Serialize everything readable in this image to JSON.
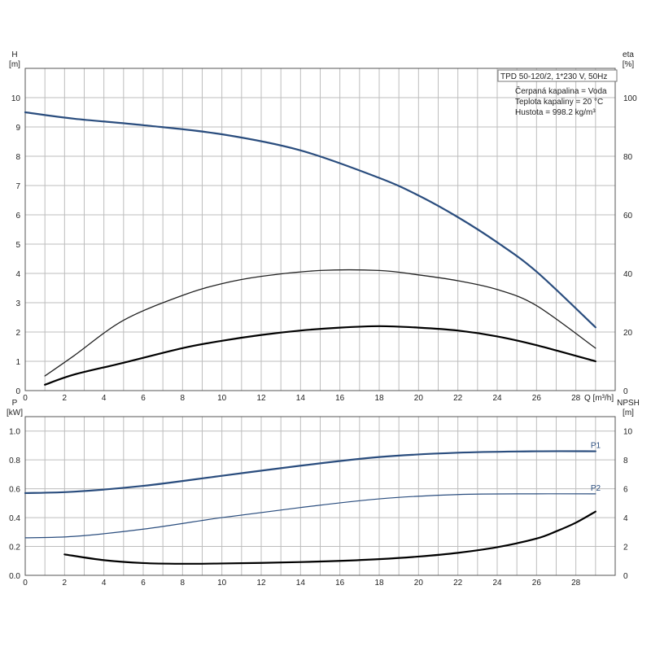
{
  "info_box": {
    "title": "TPD 50-120/2, 1*230 V, 50Hz",
    "lines": [
      "Čerpaná kapalina = Voda",
      "Teplota kapaliny = 20 °C",
      "Hustota = 998.2 kg/m³"
    ]
  },
  "chart_data": [
    {
      "type": "line",
      "panel": "top",
      "xlabel": "Q [m³/h]",
      "x_ticks": [
        0,
        2,
        4,
        6,
        8,
        10,
        12,
        14,
        16,
        18,
        20,
        22,
        24,
        26,
        28
      ],
      "xlim": [
        0,
        30
      ],
      "y_left": {
        "label_top": "H",
        "label_unit": "[m]",
        "lim": [
          0,
          11
        ],
        "ticks": [
          0,
          1,
          2,
          3,
          4,
          5,
          6,
          7,
          8,
          9,
          10
        ]
      },
      "y_right": {
        "label_top": "eta",
        "label_unit": "[%]",
        "lim": [
          0,
          110
        ],
        "ticks": [
          0,
          20,
          40,
          60,
          80,
          100
        ]
      },
      "grid": true,
      "series": [
        {
          "axis": "left",
          "color": "#2a4d7e",
          "width": 2.2,
          "x": [
            0,
            2.5,
            6,
            10,
            14,
            18,
            20,
            22,
            24,
            26,
            29
          ],
          "y": [
            9.5,
            9.28,
            9.06,
            8.75,
            8.2,
            7.26,
            6.66,
            5.92,
            5.06,
            4.06,
            2.16
          ]
        },
        {
          "axis": "right",
          "color": "#222222",
          "width": 1.3,
          "x": [
            1,
            2.5,
            5,
            8,
            10,
            12,
            15,
            18,
            20,
            22,
            24,
            26,
            29
          ],
          "y": [
            5,
            12,
            24,
            32.5,
            36.5,
            39,
            41,
            41,
            39.5,
            37.5,
            34.5,
            29,
            14.5
          ]
        },
        {
          "axis": "right",
          "color": "#000000",
          "width": 2.2,
          "x": [
            1,
            2.5,
            5,
            8,
            10,
            12,
            14,
            16,
            18,
            20,
            22,
            24,
            26,
            29
          ],
          "y": [
            2,
            5.5,
            9.5,
            14.5,
            17,
            19,
            20.5,
            21.5,
            22,
            21.5,
            20.5,
            18.5,
            15.5,
            10
          ]
        }
      ]
    },
    {
      "type": "line",
      "panel": "bottom",
      "x_ticks": [
        0,
        2,
        4,
        6,
        8,
        10,
        12,
        14,
        16,
        18,
        20,
        22,
        24,
        26,
        28
      ],
      "xlim": [
        0,
        30
      ],
      "y_left": {
        "label_top": "P",
        "label_unit": "[kW]",
        "lim": [
          0,
          1.1
        ],
        "ticks": [
          "0.0",
          "0.2",
          "0.4",
          "0.6",
          "0.8",
          "1.0"
        ]
      },
      "y_right": {
        "label_top": "NPSH",
        "label_unit": "[m]",
        "lim": [
          0,
          11
        ],
        "ticks": [
          0,
          2,
          4,
          6,
          8,
          10
        ]
      },
      "grid": true,
      "series": [
        {
          "name": "P1",
          "axis": "left",
          "color": "#2a4d7e",
          "width": 2.2,
          "x": [
            0,
            2.5,
            6,
            10,
            14,
            18,
            22,
            26,
            29
          ],
          "y": [
            0.57,
            0.58,
            0.62,
            0.69,
            0.76,
            0.82,
            0.85,
            0.86,
            0.86
          ]
        },
        {
          "name": "P2",
          "axis": "left",
          "color": "#2a4d7e",
          "width": 1.2,
          "x": [
            0,
            2.5,
            6,
            10,
            14,
            18,
            22,
            26,
            29
          ],
          "y": [
            0.26,
            0.27,
            0.32,
            0.4,
            0.47,
            0.53,
            0.56,
            0.565,
            0.565
          ]
        },
        {
          "axis": "right",
          "color": "#000000",
          "width": 2.2,
          "x": [
            2,
            4,
            6,
            8,
            10,
            12,
            14,
            16,
            18,
            20,
            22,
            24,
            26,
            27,
            28,
            29
          ],
          "y": [
            1.45,
            1.05,
            0.85,
            0.8,
            0.82,
            0.86,
            0.92,
            1.0,
            1.12,
            1.3,
            1.56,
            1.95,
            2.55,
            3.05,
            3.65,
            4.42
          ]
        }
      ]
    }
  ]
}
